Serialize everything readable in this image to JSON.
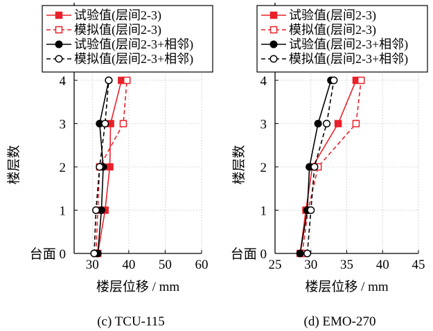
{
  "chart_data": [
    {
      "type": "line",
      "caption": "(c) TCU-115",
      "xlabel": "楼层位移 / mm",
      "ylabel": "楼层数",
      "xlim": [
        25,
        60
      ],
      "ylim": [
        0,
        4
      ],
      "xticks": [
        30,
        40,
        50,
        60
      ],
      "yticks": [
        0,
        1,
        2,
        3,
        4
      ],
      "ytick_labels": [
        "台面 0",
        "1",
        "2",
        "3",
        "4"
      ],
      "grid": true,
      "legend_position": "top-left",
      "series": [
        {
          "name": "试验值(层间2-3)",
          "color": "#e8202a",
          "dashed": false,
          "marker": "filled-square",
          "x": [
            31.5,
            33.5,
            34.8,
            35.0,
            38.0
          ],
          "y": [
            0,
            1,
            2,
            3,
            4
          ]
        },
        {
          "name": "模拟值(层间2-3)",
          "color": "#e8202a",
          "dashed": true,
          "marker": "open-square",
          "x": [
            31.0,
            31.5,
            32.0,
            38.5,
            39.5
          ],
          "y": [
            0,
            1,
            2,
            3,
            4
          ]
        },
        {
          "name": "试验值(层间2-3+相邻)",
          "color": "#000000",
          "dashed": false,
          "marker": "filled-circle",
          "x": [
            31.5,
            32.5,
            33.0,
            32.0,
            34.5
          ],
          "y": [
            0,
            1,
            2,
            3,
            4
          ]
        },
        {
          "name": "模拟值(层间2-3+相邻)",
          "color": "#000000",
          "dashed": true,
          "marker": "open-circle",
          "x": [
            30.5,
            31.0,
            32.0,
            33.5,
            34.5
          ],
          "y": [
            0,
            1,
            2,
            3,
            4
          ]
        }
      ]
    },
    {
      "type": "line",
      "caption": "(d) EMO-270",
      "xlabel": "楼层位移 / mm",
      "ylabel": "楼层数",
      "xlim": [
        25,
        45
      ],
      "ylim": [
        0,
        4
      ],
      "xticks": [
        25,
        30,
        35,
        40,
        45
      ],
      "yticks": [
        0,
        1,
        2,
        3,
        4
      ],
      "ytick_labels": [
        "台面 0",
        "1",
        "2",
        "3",
        "4"
      ],
      "grid": true,
      "legend_position": "top-left",
      "series": [
        {
          "name": "试验值(层间2-3)",
          "color": "#e8202a",
          "dashed": false,
          "marker": "filled-square",
          "x": [
            28.5,
            29.3,
            30.2,
            33.8,
            36.3
          ],
          "y": [
            0,
            1,
            2,
            3,
            4
          ]
        },
        {
          "name": "模拟值(层间2-3)",
          "color": "#e8202a",
          "dashed": true,
          "marker": "open-square",
          "x": [
            28.8,
            29.6,
            31.0,
            36.3,
            37.0
          ],
          "y": [
            0,
            1,
            2,
            3,
            4
          ]
        },
        {
          "name": "试验值(层间2-3+相邻)",
          "color": "#000000",
          "dashed": false,
          "marker": "filled-circle",
          "x": [
            28.5,
            29.5,
            29.8,
            31.0,
            32.8
          ],
          "y": [
            0,
            1,
            2,
            3,
            4
          ]
        },
        {
          "name": "模拟值(层间2-3+相邻)",
          "color": "#000000",
          "dashed": true,
          "marker": "open-circle",
          "x": [
            29.5,
            30.0,
            30.5,
            32.2,
            33.2
          ],
          "y": [
            0,
            1,
            2,
            3,
            4
          ]
        }
      ]
    }
  ]
}
